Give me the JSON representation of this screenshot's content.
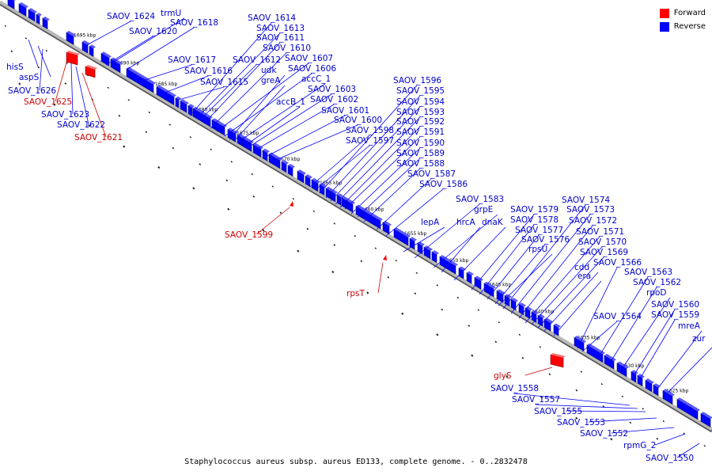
{
  "colors": {
    "forward": "#ff0000",
    "reverse": "#0000ff",
    "forward_text": "#cc0000",
    "reverse_text": "#0000cc",
    "backbone": "#999999"
  },
  "legend": [
    {
      "label": "Forward",
      "color": "#ff0000"
    },
    {
      "label": "Reverse",
      "color": "#0000ff"
    }
  ],
  "caption": "Staphylococcus aureus subsp. aureus ED133, complete genome. - 0..2832478",
  "ruler_ticks": [
    "1695 kbp",
    "1690 kbp",
    "1685 kbp",
    "1680 kbp",
    "1675 kbp",
    "1670 kbp",
    "1665 kbp",
    "1660 kbp",
    "1655 kbp",
    "1650 kbp",
    "1645 kbp",
    "1640 kbp",
    "1635 kbp",
    "1630 kbp",
    "1625 kbp"
  ],
  "genes": [
    {
      "name": "SAOV_1624",
      "strand": "reverse"
    },
    {
      "name": "trmU",
      "strand": "reverse"
    },
    {
      "name": "SAOV_1618",
      "strand": "reverse"
    },
    {
      "name": "SAOV_1620",
      "strand": "reverse"
    },
    {
      "name": "SAOV_1614",
      "strand": "reverse"
    },
    {
      "name": "SAOV_1613",
      "strand": "reverse"
    },
    {
      "name": "SAOV_1611",
      "strand": "reverse"
    },
    {
      "name": "SAOV_1610",
      "strand": "reverse"
    },
    {
      "name": "SAOV_1607",
      "strand": "reverse"
    },
    {
      "name": "SAOV_1606",
      "strand": "reverse"
    },
    {
      "name": "SAOV_1617",
      "strand": "reverse"
    },
    {
      "name": "SAOV_1612",
      "strand": "reverse"
    },
    {
      "name": "udk",
      "strand": "reverse"
    },
    {
      "name": "accC_1",
      "strand": "reverse"
    },
    {
      "name": "SAOV_1616",
      "strand": "reverse"
    },
    {
      "name": "greA",
      "strand": "reverse"
    },
    {
      "name": "SAOV_1615",
      "strand": "reverse"
    },
    {
      "name": "SAOV_1603",
      "strand": "reverse"
    },
    {
      "name": "accB_1",
      "strand": "reverse"
    },
    {
      "name": "SAOV_1602",
      "strand": "reverse"
    },
    {
      "name": "SAOV_1601",
      "strand": "reverse"
    },
    {
      "name": "SAOV_1600",
      "strand": "reverse"
    },
    {
      "name": "SAOV_1598",
      "strand": "reverse"
    },
    {
      "name": "SAOV_1597",
      "strand": "reverse"
    },
    {
      "name": "SAOV_1596",
      "strand": "reverse"
    },
    {
      "name": "SAOV_1595",
      "strand": "reverse"
    },
    {
      "name": "SAOV_1594",
      "strand": "reverse"
    },
    {
      "name": "SAOV_1593",
      "strand": "reverse"
    },
    {
      "name": "SAOV_1592",
      "strand": "reverse"
    },
    {
      "name": "SAOV_1591",
      "strand": "reverse"
    },
    {
      "name": "SAOV_1590",
      "strand": "reverse"
    },
    {
      "name": "SAOV_1589",
      "strand": "reverse"
    },
    {
      "name": "SAOV_1588",
      "strand": "reverse"
    },
    {
      "name": "SAOV_1587",
      "strand": "reverse"
    },
    {
      "name": "SAOV_1586",
      "strand": "reverse"
    },
    {
      "name": "SAOV_1583",
      "strand": "reverse"
    },
    {
      "name": "grpE",
      "strand": "reverse"
    },
    {
      "name": "lepA",
      "strand": "reverse"
    },
    {
      "name": "hrcA",
      "strand": "reverse"
    },
    {
      "name": "dnaK",
      "strand": "reverse"
    },
    {
      "name": "SAOV_1579",
      "strand": "reverse"
    },
    {
      "name": "SAOV_1578",
      "strand": "reverse"
    },
    {
      "name": "SAOV_1577",
      "strand": "reverse"
    },
    {
      "name": "SAOV_1576",
      "strand": "reverse"
    },
    {
      "name": "rpsU",
      "strand": "reverse"
    },
    {
      "name": "SAOV_1574",
      "strand": "reverse"
    },
    {
      "name": "SAOV_1573",
      "strand": "reverse"
    },
    {
      "name": "SAOV_1572",
      "strand": "reverse"
    },
    {
      "name": "SAOV_1571",
      "strand": "reverse"
    },
    {
      "name": "SAOV_1570",
      "strand": "reverse"
    },
    {
      "name": "SAOV_1569",
      "strand": "reverse"
    },
    {
      "name": "cdd",
      "strand": "reverse"
    },
    {
      "name": "era",
      "strand": "reverse"
    },
    {
      "name": "SAOV_1566",
      "strand": "reverse"
    },
    {
      "name": "SAOV_1563",
      "strand": "reverse"
    },
    {
      "name": "SAOV_1562",
      "strand": "reverse"
    },
    {
      "name": "rpoD",
      "strand": "reverse"
    },
    {
      "name": "SAOV_1564",
      "strand": "reverse"
    },
    {
      "name": "SAOV_1560",
      "strand": "reverse"
    },
    {
      "name": "SAOV_1559",
      "strand": "reverse"
    },
    {
      "name": "mreA",
      "strand": "reverse"
    },
    {
      "name": "zur",
      "strand": "reverse"
    },
    {
      "name": "hisS",
      "strand": "reverse"
    },
    {
      "name": "aspS",
      "strand": "reverse"
    },
    {
      "name": "SAOV_1626",
      "strand": "reverse"
    },
    {
      "name": "SAOV_1625",
      "strand": "forward"
    },
    {
      "name": "SAOV_1623",
      "strand": "reverse"
    },
    {
      "name": "SAOV_1622",
      "strand": "reverse"
    },
    {
      "name": "SAOV_1621",
      "strand": "forward"
    },
    {
      "name": "SAOV_1599",
      "strand": "forward"
    },
    {
      "name": "rpsT",
      "strand": "forward"
    },
    {
      "name": "glyS",
      "strand": "forward"
    },
    {
      "name": "SAOV_1558",
      "strand": "reverse"
    },
    {
      "name": "SAOV_1557",
      "strand": "reverse"
    },
    {
      "name": "SAOV_1555",
      "strand": "reverse"
    },
    {
      "name": "SAOV_1553",
      "strand": "reverse"
    },
    {
      "name": "SAOV_1552",
      "strand": "reverse"
    },
    {
      "name": "rpmG_2",
      "strand": "reverse"
    },
    {
      "name": "SAOV_1550",
      "strand": "reverse"
    }
  ]
}
